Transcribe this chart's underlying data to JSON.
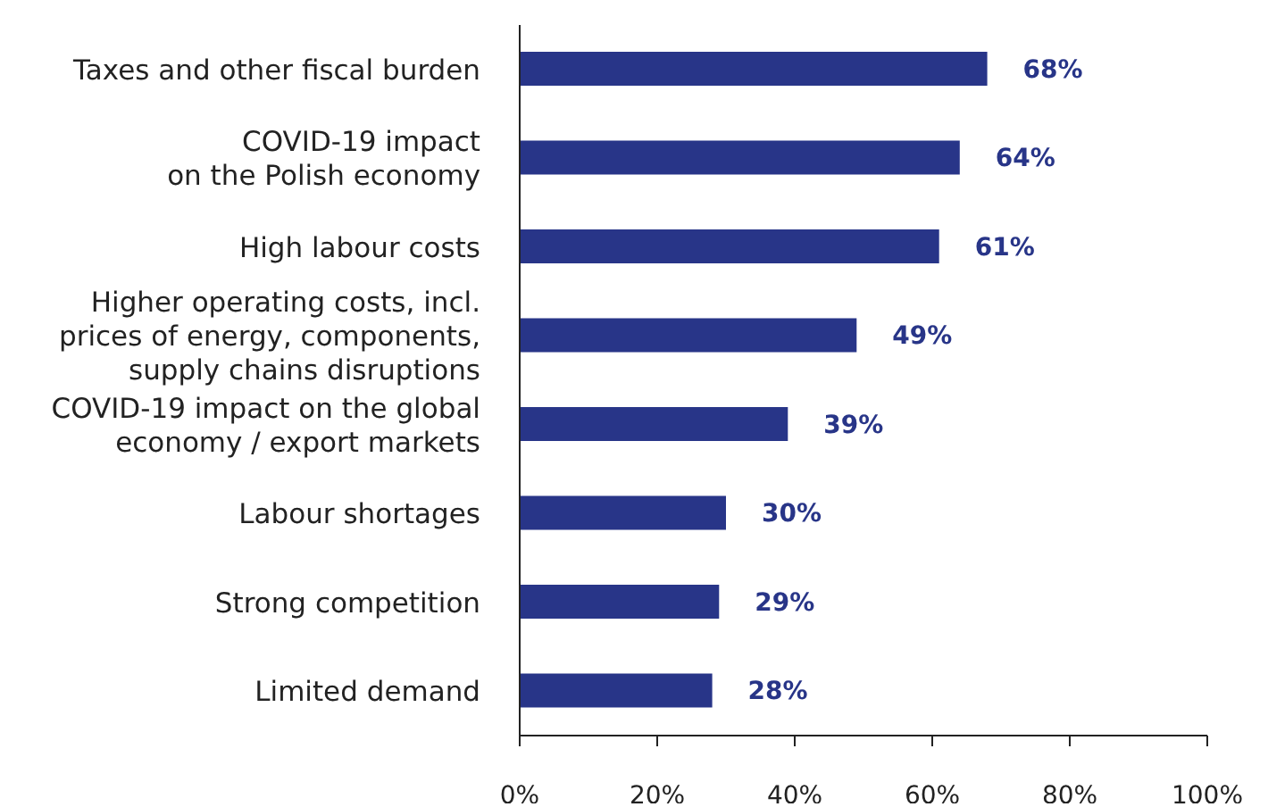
{
  "chart_data": {
    "type": "bar",
    "orientation": "horizontal",
    "categories": [
      "Taxes and other fiscal burden",
      "COVID-19 impact\non the Polish economy",
      "High labour costs",
      "Higher operating costs, incl.\nprices of energy, components,\nsupply chains disruptions",
      "COVID-19 impact on the global\neconomy / export markets",
      "Labour shortages",
      "Strong competition",
      "Limited demand"
    ],
    "values": [
      68,
      64,
      61,
      49,
      39,
      30,
      29,
      28
    ],
    "value_labels": [
      "68%",
      "64%",
      "61%",
      "49%",
      "39%",
      "30%",
      "29%",
      "28%"
    ],
    "color": "#283588",
    "xlim": [
      0,
      100
    ],
    "xticks": [
      {
        "value": 0,
        "label": "0%"
      },
      {
        "value": 20,
        "label": "20%"
      },
      {
        "value": 40,
        "label": "40%"
      },
      {
        "value": 60,
        "label": "60%"
      },
      {
        "value": 80,
        "label": "80%"
      },
      {
        "value": 100,
        "label": "100%"
      }
    ],
    "grid": false,
    "legend": false
  }
}
